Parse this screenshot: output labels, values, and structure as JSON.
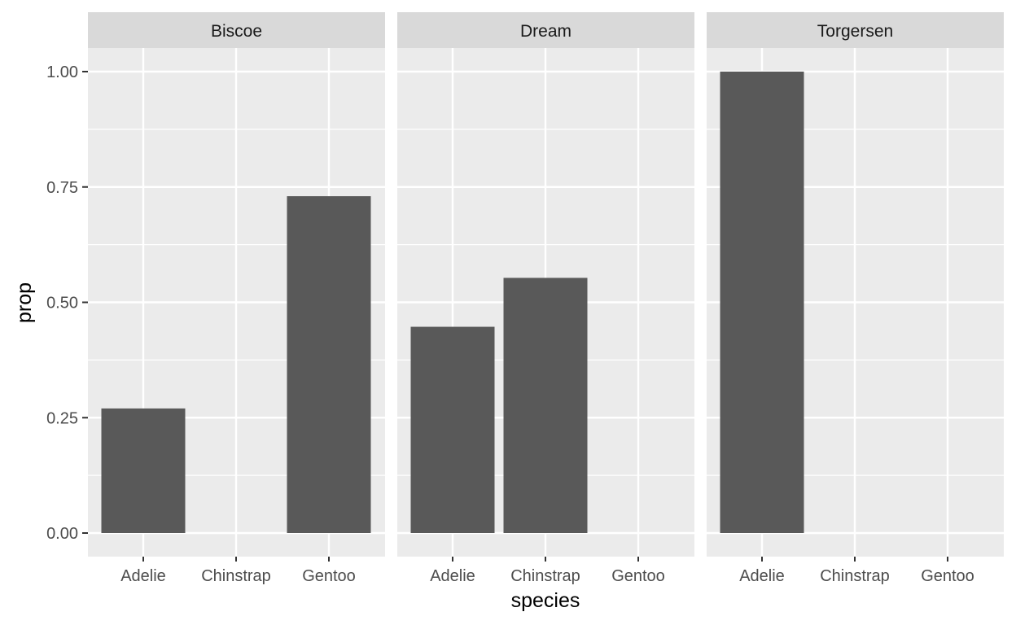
{
  "chart_data": {
    "type": "bar",
    "facet_by": "island",
    "xlabel": "species",
    "ylabel": "prop",
    "ylim": [
      0,
      1.05
    ],
    "y_ticks": [
      "0.00",
      "0.25",
      "0.50",
      "0.75",
      "1.00"
    ],
    "categories": [
      "Adelie",
      "Chinstrap",
      "Gentoo"
    ],
    "bar_color": "#595959",
    "panel_background": "#ebebeb",
    "strip_background": "#d9d9d9",
    "grid": true,
    "facets": [
      {
        "label": "Biscoe",
        "values": [
          0.27,
          0,
          0.73
        ]
      },
      {
        "label": "Dream",
        "values": [
          0.447,
          0.553,
          0
        ]
      },
      {
        "label": "Torgersen",
        "values": [
          1.0,
          0,
          0
        ]
      }
    ]
  }
}
